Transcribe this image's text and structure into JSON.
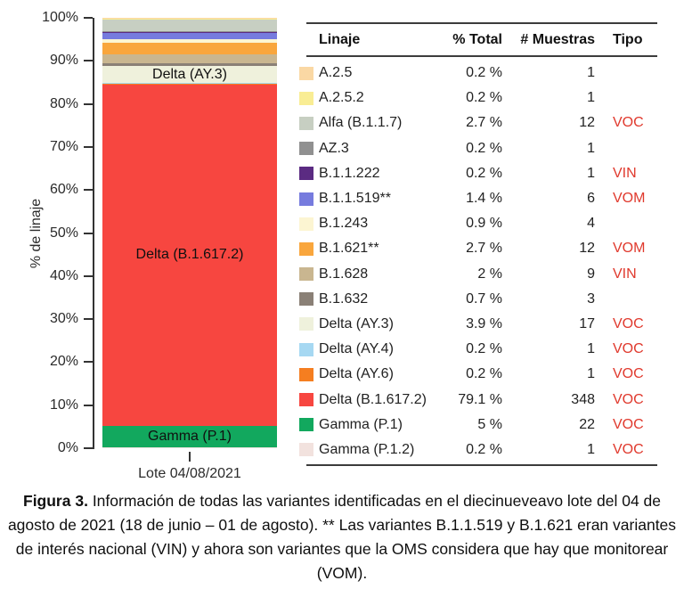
{
  "colors": {
    "axis": "#333333",
    "rule": "#3c3c3c",
    "tipo_red": "#e0392d"
  },
  "chart_data": {
    "type": "bar",
    "stacked": true,
    "title": "",
    "xlabel": "",
    "ylabel": "% de linaje",
    "ylim": [
      0,
      100
    ],
    "grid": false,
    "legend_position": "table-right",
    "categories": [
      "Lote 04/08/2021"
    ],
    "yticks": [
      "100%",
      "90%",
      "80%",
      "70%",
      "60%",
      "50%",
      "40%",
      "30%",
      "20%",
      "10%",
      "0%"
    ],
    "series": [
      {
        "name": "A.2.5",
        "value": 0.2,
        "color": "#FAD8A4",
        "labeled": false
      },
      {
        "name": "A.2.5.2",
        "value": 0.2,
        "color": "#F9ED94",
        "labeled": false
      },
      {
        "name": "Alfa (B.1.1.7)",
        "value": 2.7,
        "color": "#C7CFC2",
        "labeled": false
      },
      {
        "name": "AZ.3",
        "value": 0.2,
        "color": "#909090",
        "labeled": false
      },
      {
        "name": "B.1.1.222",
        "value": 0.2,
        "color": "#5B2B82",
        "labeled": false
      },
      {
        "name": "B.1.1.519",
        "value": 1.4,
        "color": "#767BDE",
        "labeled": false
      },
      {
        "name": "B.1.243",
        "value": 0.9,
        "color": "#FCF5D2",
        "labeled": false
      },
      {
        "name": "B.1.621",
        "value": 2.7,
        "color": "#F9A63D",
        "labeled": false
      },
      {
        "name": "B.1.628",
        "value": 2.0,
        "color": "#C9B690",
        "labeled": false
      },
      {
        "name": "B.1.632",
        "value": 0.7,
        "color": "#8A8076",
        "labeled": false
      },
      {
        "name": "Delta (AY.3)",
        "value": 3.9,
        "color": "#EFF1DC",
        "labeled": true
      },
      {
        "name": "Delta (AY.4)",
        "value": 0.2,
        "color": "#A6D8F2",
        "labeled": false
      },
      {
        "name": "Delta (AY.6)",
        "value": 0.2,
        "color": "#F57E20",
        "labeled": false
      },
      {
        "name": "Delta (B.1.617.2)",
        "value": 79.1,
        "color": "#F74640",
        "labeled": true
      },
      {
        "name": "Gamma (P.1)",
        "value": 5.0,
        "color": "#12A85E",
        "labeled": true
      },
      {
        "name": "Gamma (P.1.2)",
        "value": 0.2,
        "color": "#F2E2DE",
        "labeled": false
      }
    ]
  },
  "table": {
    "headers": {
      "lineage": "Linaje",
      "pct": "% Total",
      "muestras": "# Muestras",
      "tipo": "Tipo"
    },
    "rows": [
      {
        "lineage": "A.2.5",
        "pct": "0.2 %",
        "muestras": "1",
        "tipo": "",
        "color": "#FAD8A4"
      },
      {
        "lineage": "A.2.5.2",
        "pct": "0.2 %",
        "muestras": "1",
        "tipo": "",
        "color": "#F9ED94"
      },
      {
        "lineage": "Alfa (B.1.1.7)",
        "pct": "2.7 %",
        "muestras": "12",
        "tipo": "VOC",
        "color": "#C7CFC2"
      },
      {
        "lineage": "AZ.3",
        "pct": "0.2 %",
        "muestras": "1",
        "tipo": "",
        "color": "#909090"
      },
      {
        "lineage": "B.1.1.222",
        "pct": "0.2 %",
        "muestras": "1",
        "tipo": "VIN",
        "color": "#5B2B82"
      },
      {
        "lineage": "B.1.1.519**",
        "pct": "1.4 %",
        "muestras": "6",
        "tipo": "VOM",
        "color": "#767BDE"
      },
      {
        "lineage": "B.1.243",
        "pct": "0.9 %",
        "muestras": "4",
        "tipo": "",
        "color": "#FCF5D2"
      },
      {
        "lineage": "B.1.621**",
        "pct": "2.7 %",
        "muestras": "12",
        "tipo": "VOM",
        "color": "#F9A63D"
      },
      {
        "lineage": "B.1.628",
        "pct": "2 %",
        "muestras": "9",
        "tipo": "VIN",
        "color": "#C9B690"
      },
      {
        "lineage": "B.1.632",
        "pct": "0.7 %",
        "muestras": "3",
        "tipo": "",
        "color": "#8A8076"
      },
      {
        "lineage": "Delta (AY.3)",
        "pct": "3.9 %",
        "muestras": "17",
        "tipo": "VOC",
        "color": "#EFF1DC"
      },
      {
        "lineage": "Delta (AY.4)",
        "pct": "0.2 %",
        "muestras": "1",
        "tipo": "VOC",
        "color": "#A6D8F2"
      },
      {
        "lineage": "Delta (AY.6)",
        "pct": "0.2 %",
        "muestras": "1",
        "tipo": "VOC",
        "color": "#F57E20"
      },
      {
        "lineage": "Delta (B.1.617.2)",
        "pct": "79.1 %",
        "muestras": "348",
        "tipo": "VOC",
        "color": "#F74640"
      },
      {
        "lineage": "Gamma (P.1)",
        "pct": "5 %",
        "muestras": "22",
        "tipo": "VOC",
        "color": "#12A85E"
      },
      {
        "lineage": "Gamma (P.1.2)",
        "pct": "0.2 %",
        "muestras": "1",
        "tipo": "VOC",
        "color": "#F2E2DE"
      }
    ]
  },
  "caption": {
    "bold": "Figura 3.",
    "text": "Información de todas las variantes identificadas en el diecinueveavo lote del 04 de agosto de 2021 (18 de junio – 01 de agosto). ** Las variantes B.1.1.519 y B.1.621 eran variantes de interés nacional (VIN) y ahora son variantes que la OMS considera que hay que monitorear (VOM)."
  }
}
